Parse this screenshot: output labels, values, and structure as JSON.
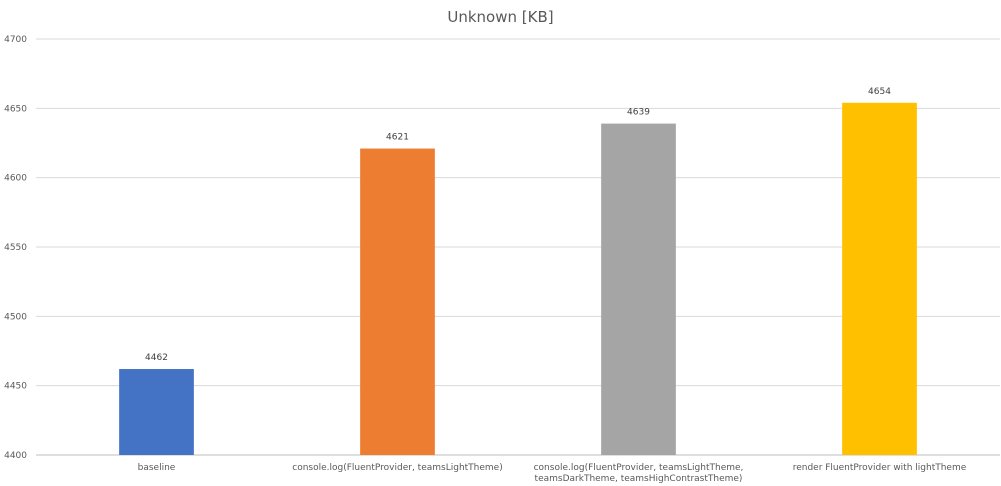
{
  "chart_data": {
    "type": "bar",
    "title": "Unknown [KB]",
    "categories": [
      [
        "baseline"
      ],
      [
        "console.log(FluentProvider, teamsLightTheme)"
      ],
      [
        "console.log(FluentProvider, teamsLightTheme,",
        "teamsDarkTheme, teamsHighContrastTheme)"
      ],
      [
        "render FluentProvider with lightTheme"
      ]
    ],
    "values": [
      4462,
      4621,
      4639,
      4654
    ],
    "colors": [
      "#4472C4",
      "#ED7D31",
      "#A5A5A5",
      "#FFC000"
    ],
    "yticks": [
      4400,
      4450,
      4500,
      4550,
      4600,
      4650,
      4700
    ],
    "ylim": [
      4400,
      4700
    ],
    "grid": true,
    "legend": "none",
    "data_labels": true
  }
}
